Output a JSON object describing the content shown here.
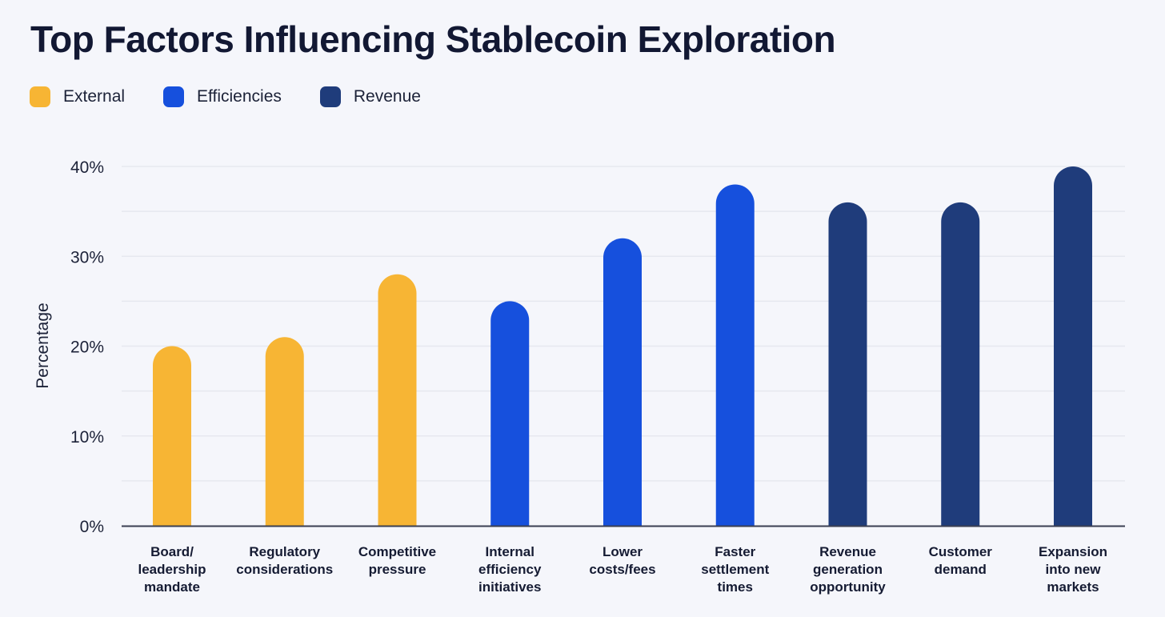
{
  "chart_data": {
    "type": "bar",
    "title": "Top Factors Influencing Stablecoin Exploration",
    "ylabel": "Percentage",
    "xlabel": "",
    "ylim": [
      0,
      40
    ],
    "yticks": [
      "0%",
      "10%",
      "20%",
      "30%",
      "40%"
    ],
    "grid": true,
    "legend_position": "top-left",
    "legend": [
      {
        "name": "External",
        "color": "#f7b534"
      },
      {
        "name": "Efficiencies",
        "color": "#1650dd"
      },
      {
        "name": "Revenue",
        "color": "#1f3c7b"
      }
    ],
    "categories": [
      [
        "Board/",
        "leadership",
        "mandate"
      ],
      [
        "Regulatory",
        "considerations"
      ],
      [
        "Competitive",
        "pressure"
      ],
      [
        "Internal",
        "efficiency",
        "initiatives"
      ],
      [
        "Lower",
        "costs/fees"
      ],
      [
        "Faster",
        "settlement",
        "times"
      ],
      [
        "Revenue",
        "generation",
        "opportunity"
      ],
      [
        "Customer",
        "demand"
      ],
      [
        "Expansion",
        "into new",
        "markets"
      ]
    ],
    "values": [
      20,
      21,
      28,
      25,
      32,
      38,
      36,
      36,
      40
    ],
    "groups": [
      "External",
      "External",
      "External",
      "Efficiencies",
      "Efficiencies",
      "Efficiencies",
      "Revenue",
      "Revenue",
      "Revenue"
    ]
  }
}
